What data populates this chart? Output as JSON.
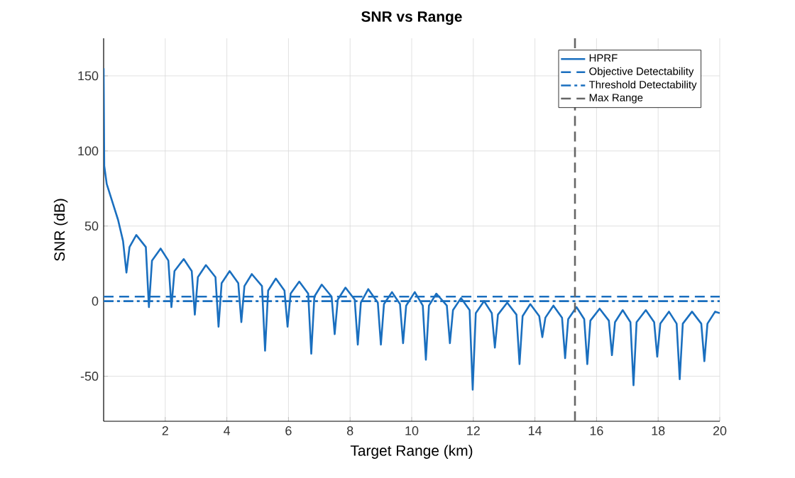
{
  "chart_data": {
    "type": "line",
    "title": "SNR vs Range",
    "xlabel": "Target Range (km)",
    "ylabel": "SNR (dB)",
    "xlim": [
      0,
      20
    ],
    "xticks": [
      2,
      4,
      6,
      8,
      10,
      12,
      14,
      16,
      18,
      20
    ],
    "ylim": [
      -80,
      175
    ],
    "yticks": [
      -50,
      0,
      50,
      100,
      150
    ],
    "grid": true,
    "legend": "top right",
    "series": [
      {
        "name": "HPRF",
        "color": "#1a6fbf",
        "line_style": "solid",
        "x": [
          0.0,
          0.02,
          0.1,
          0.3,
          0.47,
          0.63,
          0.74,
          0.84,
          1.06,
          1.37,
          1.47,
          1.57,
          1.85,
          2.1,
          2.2,
          2.3,
          2.6,
          2.86,
          2.96,
          3.06,
          3.32,
          3.63,
          3.73,
          3.83,
          4.09,
          4.37,
          4.47,
          4.57,
          4.81,
          5.14,
          5.24,
          5.34,
          5.59,
          5.87,
          5.97,
          6.07,
          6.35,
          6.64,
          6.74,
          6.84,
          7.08,
          7.4,
          7.5,
          7.6,
          7.85,
          8.15,
          8.25,
          8.35,
          8.59,
          8.9,
          9.0,
          9.1,
          9.36,
          9.62,
          9.72,
          9.82,
          10.1,
          10.36,
          10.46,
          10.56,
          10.8,
          11.14,
          11.24,
          11.34,
          11.6,
          11.88,
          11.98,
          12.08,
          12.35,
          12.6,
          12.7,
          12.8,
          13.1,
          13.4,
          13.5,
          13.6,
          13.85,
          14.14,
          14.24,
          14.34,
          14.6,
          14.88,
          14.98,
          15.08,
          15.35,
          15.6,
          15.7,
          15.8,
          16.1,
          16.4,
          16.5,
          16.6,
          16.85,
          17.1,
          17.2,
          17.3,
          17.6,
          17.87,
          17.97,
          18.07,
          18.35,
          18.6,
          18.7,
          18.8,
          19.1,
          19.4,
          19.5,
          19.6,
          19.85,
          20.0
        ],
        "values": [
          155,
          90,
          78,
          65,
          54,
          40,
          19,
          36,
          44,
          36,
          -4,
          27,
          35,
          27,
          -4,
          20,
          28,
          20,
          -9,
          16,
          24,
          16,
          -17,
          12,
          20,
          12,
          -14,
          10,
          18,
          10,
          -33,
          7,
          15,
          7,
          -17,
          5,
          13,
          5,
          -35,
          3,
          11,
          3,
          -22,
          1,
          9,
          1,
          -29,
          -1,
          8,
          -1,
          -29,
          -2,
          6,
          -2,
          -28,
          -3,
          6,
          -3,
          -39,
          -3,
          5,
          -3,
          -28,
          -6,
          2,
          -6,
          -59,
          -8,
          0,
          -8,
          -31,
          -9,
          -1,
          -9,
          -42,
          -10,
          -2,
          -10,
          -24,
          -11,
          -3,
          -11,
          -38,
          -12,
          -4,
          -12,
          -42,
          -13,
          -5,
          -13,
          -36,
          -14,
          -6,
          -14,
          -56,
          -14,
          -6,
          -14,
          -37,
          -15,
          -7,
          -15,
          -52,
          -15,
          -7,
          -15,
          -40,
          -15,
          -7,
          -8
        ]
      },
      {
        "name": "Objective Detectability",
        "color": "#1a6fbf",
        "line_style": "dashed",
        "x": [
          0,
          20
        ],
        "values": [
          3,
          3
        ]
      },
      {
        "name": "Threshold Detectability",
        "color": "#1a6fbf",
        "line_style": "dashdot",
        "x": [
          0,
          20
        ],
        "values": [
          0,
          0
        ]
      },
      {
        "name": "Max Range",
        "color": "#666666",
        "line_style": "dashed",
        "x": [
          15.3,
          15.3
        ],
        "values": [
          -80,
          175
        ]
      }
    ]
  }
}
